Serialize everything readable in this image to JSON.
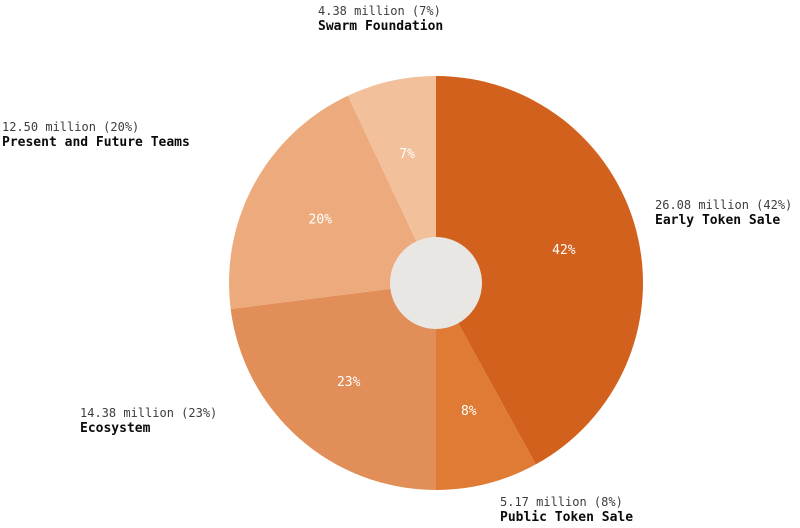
{
  "chart_data": {
    "type": "pie",
    "donut": true,
    "title": "",
    "legend_position": "none",
    "start_angle_deg": 0,
    "direction": "clockwise",
    "hole_color": "#e9e7e4",
    "inside_label_color": "#ffffff",
    "segments": [
      {
        "label": "Early Token Sale",
        "amount_million": 26.08,
        "percent": 42,
        "percent_label": "42%",
        "value_label": "26.08 million (42%)",
        "color": "#d2611e"
      },
      {
        "label": "Public Token Sale",
        "amount_million": 5.17,
        "percent": 8,
        "percent_label": "8%",
        "value_label": "5.17 million (8%)",
        "color": "#e07b35"
      },
      {
        "label": "Ecosystem",
        "amount_million": 14.38,
        "percent": 23,
        "percent_label": "23%",
        "value_label": "14.38 million (23%)",
        "color": "#e28e58"
      },
      {
        "label": "Present and Future Teams",
        "amount_million": 12.5,
        "percent": 20,
        "percent_label": "20%",
        "value_label": "12.50 million (20%)",
        "color": "#edaa7d"
      },
      {
        "label": "Swarm Foundation",
        "amount_million": 4.38,
        "percent": 7,
        "percent_label": "7%",
        "value_label": "4.38 million (7%)",
        "color": "#f2c09a"
      }
    ]
  }
}
